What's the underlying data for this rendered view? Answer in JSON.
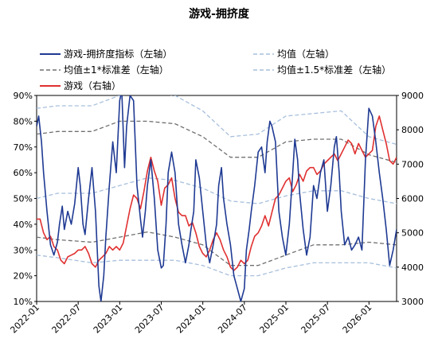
{
  "chart_data": {
    "type": "line",
    "title": "游戏-拥挤度",
    "y_left": {
      "ticks": [
        "10%",
        "20%",
        "30%",
        "40%",
        "50%",
        "60%",
        "70%",
        "80%",
        "90%"
      ],
      "min": 0.1,
      "max": 0.9
    },
    "y_right": {
      "ticks": [
        "3000",
        "4000",
        "5000",
        "6000",
        "7000",
        "8000",
        "9000"
      ],
      "min": 3000,
      "max": 9000
    },
    "x_axis": {
      "ticks": [
        "2022-01",
        "2022-07",
        "2023-01",
        "2023-07",
        "2024-01",
        "2024-07",
        "2025-01",
        "2025-07",
        "2026-01"
      ],
      "range": [
        "2022-01",
        "2026-04"
      ]
    },
    "legend": [
      {
        "key": "crowd",
        "label": "游戏-拥挤度指标（左轴）",
        "color": "#1f3a93",
        "style": "solid"
      },
      {
        "key": "mean",
        "label": "均值（左轴）",
        "color": "#a7bfdc",
        "style": "dashed"
      },
      {
        "key": "sd1",
        "label": "均值±1*标准差（左轴）",
        "color": "#707070",
        "style": "dashed"
      },
      {
        "key": "sd15",
        "label": "均值±1.5*标准差（左轴）",
        "color": "#a7bfdc",
        "style": "dashed"
      },
      {
        "key": "game",
        "label": "游戏（右轴）",
        "color": "#e03030",
        "style": "solid"
      }
    ],
    "series": [
      {
        "key": "crowd",
        "axis": "left",
        "t": [
          0,
          0.3,
          0.7,
          1,
          1.5,
          2,
          2.5,
          3,
          3.3,
          3.7,
          4,
          4.5,
          5,
          5.5,
          6,
          6.3,
          6.7,
          7,
          7.5,
          8,
          8.5,
          9,
          9.3,
          9.7,
          10,
          10.5,
          11,
          11.5,
          12,
          12.3,
          12.7,
          13,
          13.5,
          14,
          14.5,
          15,
          15.3,
          15.7,
          16,
          16.5,
          17,
          17.5,
          18,
          18.3,
          18.7,
          19,
          19.5,
          20,
          20.5,
          21,
          21.5,
          22,
          22.3,
          22.7,
          23,
          23.5,
          24,
          24.5,
          25,
          25.5,
          26,
          26.3,
          26.7,
          27,
          27.5,
          28,
          28.5,
          29,
          29.5,
          30,
          30.3,
          30.7,
          31,
          31.5,
          32,
          32.5,
          33,
          33.3,
          33.7,
          34,
          34.5,
          35,
          35.5,
          36,
          36.5,
          37,
          37.3,
          37.7,
          38,
          38.5,
          39,
          39.5,
          40,
          40.5,
          41,
          41.5,
          42,
          42.5,
          43,
          43.3,
          43.7,
          44,
          44.5,
          45,
          45.5,
          46,
          46.5,
          47,
          47.5,
          48,
          48.5,
          49,
          49.5,
          50,
          50.5,
          51,
          51.5,
          52
        ],
        "values": [
          0.78,
          0.82,
          0.72,
          0.6,
          0.45,
          0.32,
          0.28,
          0.33,
          0.4,
          0.47,
          0.38,
          0.45,
          0.4,
          0.48,
          0.62,
          0.55,
          0.4,
          0.36,
          0.5,
          0.62,
          0.45,
          0.16,
          0.1,
          0.2,
          0.35,
          0.55,
          0.72,
          0.6,
          0.88,
          0.92,
          0.62,
          0.78,
          0.9,
          0.88,
          0.55,
          0.42,
          0.35,
          0.45,
          0.55,
          0.65,
          0.5,
          0.3,
          0.23,
          0.24,
          0.4,
          0.6,
          0.68,
          0.6,
          0.4,
          0.32,
          0.25,
          0.32,
          0.38,
          0.45,
          0.65,
          0.58,
          0.45,
          0.32,
          0.25,
          0.32,
          0.4,
          0.55,
          0.62,
          0.5,
          0.4,
          0.32,
          0.2,
          0.15,
          0.1,
          0.15,
          0.3,
          0.38,
          0.45,
          0.55,
          0.68,
          0.7,
          0.6,
          0.72,
          0.8,
          0.78,
          0.72,
          0.45,
          0.35,
          0.28,
          0.4,
          0.6,
          0.73,
          0.65,
          0.52,
          0.38,
          0.28,
          0.35,
          0.55,
          0.5,
          0.6,
          0.65,
          0.45,
          0.55,
          0.7,
          0.74,
          0.6,
          0.45,
          0.32,
          0.35,
          0.3,
          0.32,
          0.35,
          0.3,
          0.65,
          0.85,
          0.82,
          0.72,
          0.6,
          0.5,
          0.38,
          0.24,
          0.3,
          0.38
        ]
      },
      {
        "key": "game",
        "axis": "right",
        "t": [
          0,
          0.5,
          1,
          1.5,
          2,
          2.5,
          3,
          3.5,
          4,
          4.5,
          5,
          5.5,
          6,
          6.5,
          7,
          7.5,
          8,
          8.5,
          9,
          9.5,
          10,
          10.5,
          11,
          11.5,
          12,
          12.5,
          13,
          13.5,
          14,
          14.5,
          15,
          15.5,
          16,
          16.5,
          17,
          17.5,
          18,
          18.5,
          19,
          19.5,
          20,
          20.5,
          21,
          21.5,
          22,
          22.5,
          23,
          23.5,
          24,
          24.5,
          25,
          25.5,
          26,
          26.5,
          27,
          27.5,
          28,
          28.5,
          29,
          29.5,
          30,
          30.5,
          31,
          31.5,
          32,
          32.5,
          33,
          33.5,
          34,
          34.5,
          35,
          35.5,
          36,
          36.5,
          37,
          37.5,
          38,
          38.5,
          39,
          39.5,
          40,
          40.5,
          41,
          41.5,
          42,
          42.5,
          43,
          43.5,
          44,
          44.5,
          45,
          45.5,
          46,
          46.5,
          47,
          47.5,
          48,
          48.5,
          49,
          49.5,
          50,
          50.5,
          51,
          51.5,
          52
        ],
        "values": [
          5400,
          5400,
          5000,
          4800,
          4900,
          4600,
          4500,
          4200,
          4100,
          4300,
          4350,
          4400,
          4500,
          4500,
          4600,
          4400,
          4100,
          4000,
          4200,
          4300,
          4400,
          4600,
          4500,
          4600,
          4500,
          4700,
          5200,
          5700,
          6100,
          6000,
          5700,
          6200,
          6800,
          7200,
          6800,
          6500,
          5800,
          6300,
          6400,
          6600,
          6000,
          5600,
          5500,
          5500,
          5200,
          5300,
          5000,
          4600,
          4400,
          4300,
          4500,
          4800,
          5000,
          4800,
          4500,
          4300,
          4000,
          3900,
          4000,
          4200,
          4100,
          4200,
          4600,
          4900,
          5000,
          5200,
          5500,
          5200,
          5600,
          6000,
          6100,
          6300,
          6500,
          6600,
          6200,
          6400,
          6700,
          6500,
          6800,
          6900,
          6900,
          6700,
          6800,
          7000,
          7100,
          7200,
          7300,
          7100,
          7300,
          7500,
          7700,
          7600,
          7300,
          7600,
          7400,
          7200,
          7300,
          7400,
          8100,
          8400,
          8000,
          7600,
          7100,
          7000,
          7200
        ]
      },
      {
        "key": "mean",
        "axis": "left",
        "t": [
          0,
          3,
          8,
          12,
          16,
          20,
          24,
          28,
          32,
          36,
          40,
          44,
          48,
          52
        ],
        "values": [
          0.5,
          0.52,
          0.52,
          0.55,
          0.58,
          0.57,
          0.54,
          0.49,
          0.48,
          0.51,
          0.53,
          0.53,
          0.5,
          0.48
        ]
      },
      {
        "key": "sd1_upper",
        "axis": "left",
        "t": [
          0,
          3,
          8,
          12,
          16,
          20,
          24,
          28,
          32,
          36,
          40,
          44,
          48,
          52
        ],
        "values": [
          0.75,
          0.76,
          0.76,
          0.8,
          0.8,
          0.79,
          0.74,
          0.66,
          0.66,
          0.72,
          0.73,
          0.73,
          0.67,
          0.64
        ]
      },
      {
        "key": "sd1_lower",
        "axis": "left",
        "t": [
          0,
          3,
          8,
          12,
          16,
          20,
          24,
          28,
          32,
          36,
          40,
          44,
          48,
          52
        ],
        "values": [
          0.35,
          0.34,
          0.33,
          0.35,
          0.37,
          0.35,
          0.32,
          0.24,
          0.24,
          0.28,
          0.32,
          0.32,
          0.33,
          0.32
        ]
      },
      {
        "key": "sd15_upper",
        "axis": "left",
        "t": [
          0,
          3,
          8,
          12,
          16,
          20,
          24,
          28,
          32,
          36,
          40,
          44,
          48,
          52
        ],
        "values": [
          0.85,
          0.86,
          0.86,
          0.9,
          0.91,
          0.9,
          0.84,
          0.74,
          0.75,
          0.82,
          0.83,
          0.84,
          0.74,
          0.71
        ]
      },
      {
        "key": "sd15_lower",
        "axis": "left",
        "t": [
          0,
          3,
          8,
          12,
          16,
          20,
          24,
          28,
          32,
          36,
          40,
          44,
          48,
          52
        ],
        "values": [
          0.28,
          0.27,
          0.25,
          0.26,
          0.26,
          0.26,
          0.24,
          0.2,
          0.2,
          0.23,
          0.25,
          0.25,
          0.25,
          0.23
        ]
      }
    ]
  }
}
